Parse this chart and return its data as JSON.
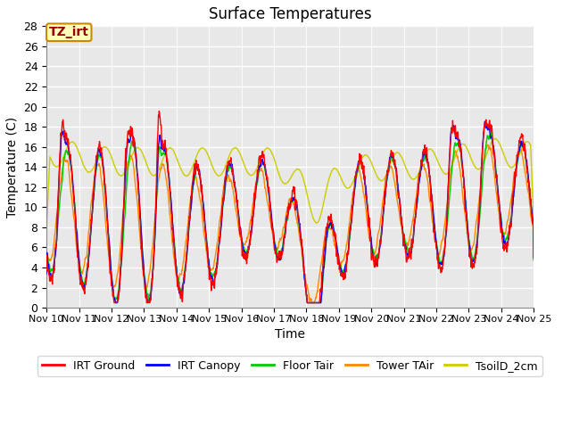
{
  "title": "Surface Temperatures",
  "xlabel": "Time",
  "ylabel": "Temperature (C)",
  "ylim": [
    0,
    28
  ],
  "yticks": [
    0,
    2,
    4,
    6,
    8,
    10,
    12,
    14,
    16,
    18,
    20,
    22,
    24,
    26,
    28
  ],
  "x_labels": [
    "Nov 10",
    "Nov 11",
    "Nov 12",
    "Nov 13",
    "Nov 14",
    "Nov 15",
    "Nov 16",
    "Nov 17",
    "Nov 18",
    "Nov 19",
    "Nov 20",
    "Nov 21",
    "Nov 22",
    "Nov 23",
    "Nov 24",
    "Nov 25"
  ],
  "background_color": "#ffffff",
  "plot_bg_color": "#e8e8e8",
  "legend": [
    {
      "label": "IRT Ground",
      "color": "#ff0000"
    },
    {
      "label": "IRT Canopy",
      "color": "#0000ff"
    },
    {
      "label": "Floor Tair",
      "color": "#00cc00"
    },
    {
      "label": "Tower TAir",
      "color": "#ff8800"
    },
    {
      "label": "TsoilD_2cm",
      "color": "#cccc00"
    }
  ],
  "annotation_text": "TZ_irt",
  "annotation_bg": "#ffffbb",
  "annotation_border": "#cc8800",
  "title_fontsize": 12,
  "label_fontsize": 10,
  "tick_fontsize": 9
}
